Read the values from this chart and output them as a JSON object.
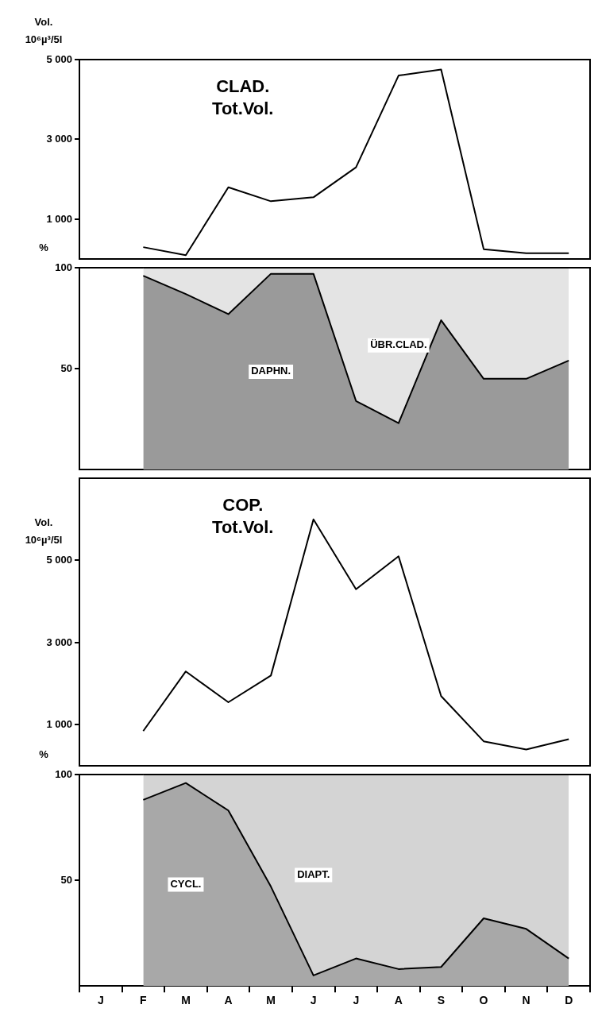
{
  "chart_data": [
    {
      "type": "line",
      "title": "CLAD. Tot.Vol.",
      "ylabel": "Vol. 10⁶µ³/5l",
      "categories": [
        null,
        null,
        null,
        null,
        null,
        null,
        null,
        null,
        null,
        null,
        null
      ],
      "series": [
        {
          "color": "#000000",
          "values": [
            300,
            100,
            1800,
            1450,
            1550,
            2300,
            4600,
            4750,
            250,
            150,
            150
          ]
        }
      ],
      "ylim": [
        0,
        5000
      ],
      "yticks": [
        {
          "value": 1000,
          "label": "1 000"
        },
        {
          "value": 3000,
          "label": "3 000"
        },
        {
          "value": 5000,
          "label": "5 000"
        }
      ],
      "tick_labels": "y"
    },
    {
      "type": "area",
      "stacked": true,
      "ylabel": "%",
      "categories": [
        null,
        null,
        null,
        null,
        null,
        null,
        null,
        null,
        null,
        null,
        null
      ],
      "series": [
        {
          "name": "DAPHN.",
          "color": "#9a9a9a",
          "values": [
            96,
            87,
            77,
            97,
            97,
            34,
            23,
            74,
            45,
            45,
            54
          ]
        },
        {
          "name": "ÜBR.CLAD.",
          "color": "#e4e4e4",
          "values": [
            4,
            13,
            23,
            3,
            3,
            66,
            77,
            26,
            55,
            55,
            46
          ]
        }
      ],
      "ylim": [
        0,
        100
      ],
      "yticks": [
        {
          "value": 50,
          "label": "50"
        },
        {
          "value": 100,
          "label": "100"
        }
      ],
      "tick_labels": "y"
    },
    {
      "type": "line",
      "title": "COP. Tot.Vol.",
      "ylabel": "Vol. 10⁶µ³/5l",
      "categories": [
        null,
        null,
        null,
        null,
        null,
        null,
        null,
        null,
        null,
        null,
        null
      ],
      "series": [
        {
          "color": "#000000",
          "values": [
            850,
            2300,
            1550,
            2200,
            6000,
            4300,
            5100,
            1700,
            600,
            400,
            650
          ]
        }
      ],
      "ylim": [
        0,
        7000
      ],
      "yticks": [
        {
          "value": 1000,
          "label": "1 000"
        },
        {
          "value": 3000,
          "label": "3 000"
        },
        {
          "value": 5000,
          "label": "5 000"
        }
      ],
      "tick_labels": "y"
    },
    {
      "type": "area",
      "stacked": true,
      "ylabel": "%",
      "categories": [
        "J",
        "F",
        "M",
        "A",
        "M",
        "J",
        "J",
        "A",
        "S",
        "O",
        "N",
        "D"
      ],
      "series": [
        {
          "name": "CYCL.",
          "color": "#a8a8a8",
          "values": [
            null,
            88,
            96,
            83,
            47,
            5,
            13,
            8,
            9,
            32,
            27,
            13
          ]
        },
        {
          "name": "DIAPT.",
          "color": "#d4d4d4",
          "values": [
            null,
            12,
            4,
            17,
            53,
            95,
            87,
            92,
            91,
            68,
            73,
            87
          ]
        }
      ],
      "ylim": [
        0,
        100
      ],
      "yticks": [
        {
          "value": 50,
          "label": "50"
        },
        {
          "value": 100,
          "label": "100"
        }
      ]
    }
  ]
}
